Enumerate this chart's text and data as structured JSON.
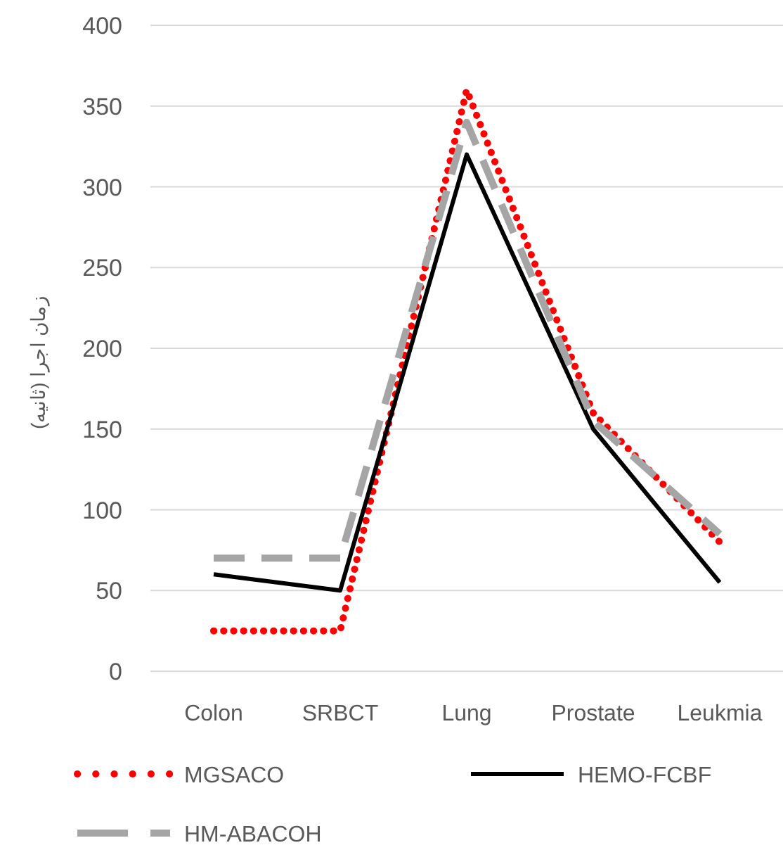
{
  "chart_data": {
    "type": "line",
    "ylabel": "زمان اجرا (ثانیه)",
    "categories": [
      "Colon",
      "SRBCT",
      "Lung",
      "Prostate",
      "Leukmia"
    ],
    "series": [
      {
        "name": "MGSACO",
        "color": "#ff0000",
        "line_style": "dotted",
        "values": [
          25,
          25,
          360,
          160,
          80
        ]
      },
      {
        "name": "HEMO-FCBF",
        "color": "#000000",
        "line_style": "solid",
        "values": [
          60,
          50,
          320,
          150,
          55
        ]
      },
      {
        "name": "HM-ABACOH",
        "color": "#a5a5a5",
        "line_style": "dashed",
        "values": [
          70,
          70,
          340,
          155,
          85
        ]
      }
    ],
    "ylim": [
      0,
      400
    ],
    "yticks": [
      0,
      50,
      100,
      150,
      200,
      250,
      300,
      350,
      400
    ],
    "grid": "y",
    "legend": "bottom"
  }
}
